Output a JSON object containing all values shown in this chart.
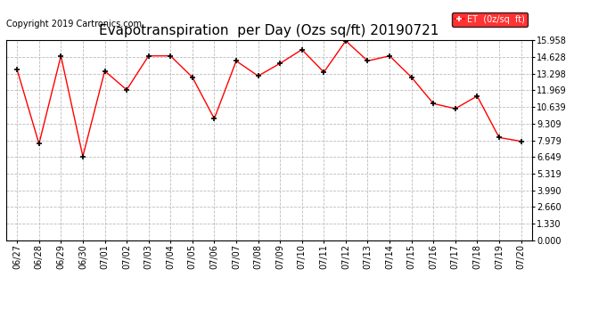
{
  "title": "Evapotranspiration  per Day (Ozs sq/ft) 20190721",
  "copyright": "Copyright 2019 Cartronics.com",
  "legend_label": "ET  (0z/sq  ft)",
  "dates": [
    "06/27",
    "06/28",
    "06/29",
    "06/30",
    "07/01",
    "07/02",
    "07/03",
    "07/04",
    "07/05",
    "07/06",
    "07/07",
    "07/08",
    "07/09",
    "07/10",
    "07/11",
    "07/12",
    "07/13",
    "07/14",
    "07/15",
    "07/16",
    "07/17",
    "07/18",
    "07/19",
    "07/20"
  ],
  "values": [
    13.6,
    7.7,
    14.7,
    6.7,
    13.5,
    12.0,
    14.7,
    14.7,
    13.0,
    9.7,
    14.3,
    13.1,
    14.1,
    15.2,
    13.4,
    15.9,
    14.3,
    14.7,
    13.0,
    10.9,
    10.5,
    11.5,
    8.2,
    7.9
  ],
  "yticks": [
    0.0,
    1.33,
    2.66,
    3.99,
    5.319,
    6.649,
    7.979,
    9.309,
    10.639,
    11.969,
    13.298,
    14.628,
    15.958
  ],
  "ymin": 0.0,
  "ymax": 15.958,
  "line_color": "red",
  "marker_color": "black",
  "background_color": "#ffffff",
  "grid_color": "#bbbbbb",
  "legend_bg": "red",
  "legend_text_color": "white",
  "title_fontsize": 11,
  "copyright_fontsize": 7,
  "tick_fontsize": 7
}
